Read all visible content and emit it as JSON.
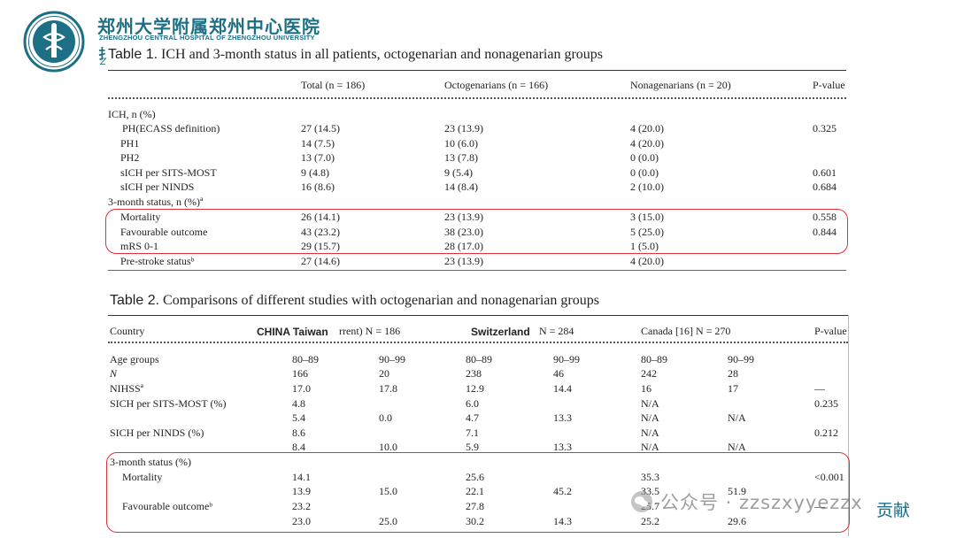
{
  "header": {
    "hospital_cn": "郑州大学附属郑州中心医院",
    "hospital_en": "ZHENGZHOU CENTRAL HOSPITAL OF ZHENGZHOU UNIVERSITY",
    "side_mark": "扌",
    "side_mark2": "Z"
  },
  "table1": {
    "title_prefix": "Table 1.",
    "title": " ICH and 3-month status in all patients, octogenarian and nonagenarian groups",
    "columns": [
      "Total (n = 186)",
      "Octogenarians (n = 166)",
      "Nonagenarians (n = 20)",
      "P-value"
    ],
    "rows": [
      {
        "label": "ICH, n (%)",
        "total": "",
        "octo": "",
        "nona": "",
        "p": ""
      },
      {
        "label": "PH(ECASS definition)",
        "total": "27 (14.5)",
        "octo": "23 (13.9)",
        "nona": "4 (20.0)",
        "p": "0.325"
      },
      {
        "label": "PH1",
        "total": "14 (7.5)",
        "octo": "10 (6.0)",
        "nona": "4 (20.0)",
        "p": ""
      },
      {
        "label": "PH2",
        "total": "13 (7.0)",
        "octo": "13 (7.8)",
        "nona": "0 (0.0)",
        "p": ""
      },
      {
        "label": "sICH per SITS-MOST",
        "total": "9 (4.8)",
        "octo": "9 (5.4)",
        "nona": "0 (0.0)",
        "p": "0.601"
      },
      {
        "label": "sICH per NINDS",
        "total": "16 (8.6)",
        "octo": "14 (8.4)",
        "nona": "2 (10.0)",
        "p": "0.684"
      },
      {
        "label": "3-month status, n (%)ª",
        "total": "",
        "octo": "",
        "nona": "",
        "p": ""
      },
      {
        "label": "Mortality",
        "total": "26 (14.1)",
        "octo": "23 (13.9)",
        "nona": "3 (15.0)",
        "p": "0.558"
      },
      {
        "label": "Favourable outcome",
        "total": "43 (23.2)",
        "octo": "38 (23.0)",
        "nona": "5 (25.0)",
        "p": "0.844"
      },
      {
        "label": "mRS 0-1",
        "total": "29 (15.7)",
        "octo": "28 (17.0)",
        "nona": "1 (5.0)",
        "p": ""
      },
      {
        "label": "Pre-stroke statusᵇ",
        "total": "27 (14.6)",
        "octo": "23 (13.9)",
        "nona": "4 (20.0)",
        "p": ""
      }
    ]
  },
  "table2": {
    "title_prefix": "Table 2.",
    "title": " Comparisons of different studies with octogenarian and nonagenarian groups",
    "header": {
      "country": "Country",
      "china": "CHINA Taiwan",
      "china_n": "rrent) N = 186",
      "swiss": "Switzerland",
      "swiss_n": "N = 284",
      "canada": "Canada [16] N = 270",
      "p": "P-value"
    },
    "rows": [
      {
        "label": "Age groups",
        "c": [
          "80–89",
          "90–99",
          "80–89",
          "90–99",
          "80–89",
          "90–99"
        ],
        "p": ""
      },
      {
        "label": "N",
        "c": [
          "166",
          "20",
          "238",
          "46",
          "242",
          "28"
        ],
        "p": ""
      },
      {
        "label": "NIHSSª",
        "c": [
          "17.0",
          "17.8",
          "12.9",
          "14.4",
          "16",
          "17"
        ],
        "p": "—"
      },
      {
        "label": "SICH per SITS-MOST (%)",
        "c": [
          "4.8",
          "",
          "6.0",
          "",
          "N/A",
          ""
        ],
        "p": "0.235"
      },
      {
        "label": "",
        "c": [
          "5.4",
          "0.0",
          "4.7",
          "13.3",
          "N/A",
          "N/A"
        ],
        "p": ""
      },
      {
        "label": "SICH per NINDS (%)",
        "c": [
          "8.6",
          "",
          "7.1",
          "",
          "N/A",
          ""
        ],
        "p": "0.212"
      },
      {
        "label": "",
        "c": [
          "8.4",
          "10.0",
          "5.9",
          "13.3",
          "N/A",
          "N/A"
        ],
        "p": ""
      },
      {
        "label": "3-month status (%)",
        "c": [
          "",
          "",
          "",
          "",
          "",
          ""
        ],
        "p": ""
      },
      {
        "label": "Mortality",
        "c": [
          "14.1",
          "",
          "25.6",
          "",
          "35.3",
          ""
        ],
        "p": "<0.001"
      },
      {
        "label": "",
        "c": [
          "13.9",
          "15.0",
          "22.1",
          "45.2",
          "33.5",
          "51.9"
        ],
        "p": ""
      },
      {
        "label": "Favourable outcomeᵇ",
        "c": [
          "23.2",
          "",
          "27.8",
          "",
          "25.7",
          ""
        ],
        "p": "—"
      },
      {
        "label": "",
        "c": [
          "23.0",
          "25.0",
          "30.2",
          "14.3",
          "25.2",
          "29.6"
        ],
        "p": ""
      }
    ]
  },
  "watermark": "公众号 · zzszxyyezzx",
  "contrib": "贡献",
  "colors": {
    "brand": "#1d6f86",
    "highlight_box": "#e0303a"
  }
}
